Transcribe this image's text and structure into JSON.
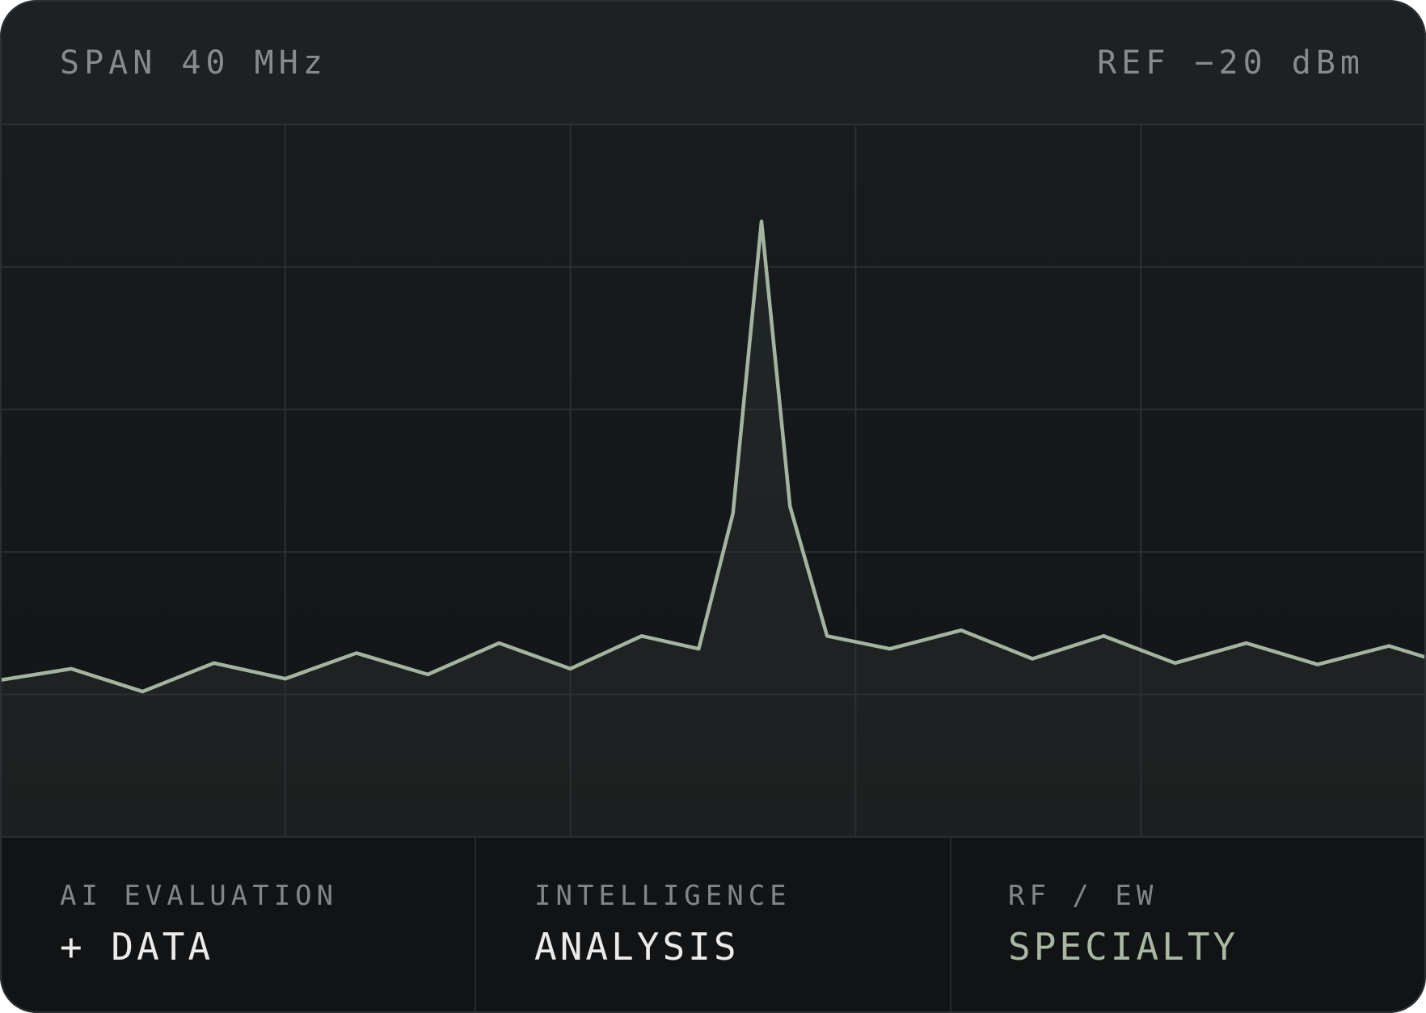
{
  "header": {
    "span": "SPAN 40 MHz",
    "ref": "REF −20 dBm"
  },
  "chart_data": {
    "type": "line",
    "x": [
      0,
      0.25,
      0.5,
      0.75,
      1,
      1.25,
      1.5,
      1.75,
      2,
      2.25,
      2.45,
      2.57,
      2.67,
      2.77,
      2.9,
      3.12,
      3.37,
      3.62,
      3.87,
      4.12,
      4.37,
      4.62,
      4.87,
      5
    ],
    "series": [
      {
        "color": "#a3b5a0",
        "values": [
          1.1,
          1.18,
          1.02,
          1.22,
          1.11,
          1.29,
          1.14,
          1.36,
          1.18,
          1.41,
          1.32,
          2.27,
          4.32,
          2.32,
          1.41,
          1.32,
          1.45,
          1.25,
          1.41,
          1.22,
          1.36,
          1.21,
          1.34,
          1.26
        ]
      }
    ],
    "xlim": [
      0,
      5
    ],
    "ylim": [
      0,
      5
    ],
    "xticks": [
      1,
      2,
      3,
      4
    ],
    "yticks": [
      1,
      2,
      3,
      4
    ],
    "grid": true
  },
  "footer": [
    {
      "label": "AI EVALUATION",
      "value": "+ DATA"
    },
    {
      "label": "INTELLIGENCE",
      "value": "ANALYSIS"
    },
    {
      "label": "RF / EW",
      "value": "SPECIALTY"
    }
  ]
}
